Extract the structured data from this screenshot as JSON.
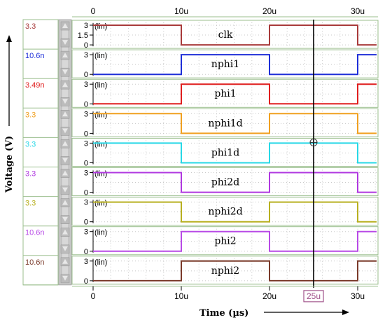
{
  "y_axis_label": "Voltage (V)",
  "x_axis_label": "Time (µs)",
  "cursor_label": "25u",
  "time_ticks": [
    "0",
    "10u",
    "20u",
    "30u"
  ],
  "colors": {
    "panel_border": "#9bbf8e",
    "grid": "#c8c8c8",
    "cursor": "#000000",
    "cursor_label": "#a0528a",
    "scroll_track": "#c9c9c9",
    "scroll_button": "#bcbcbc"
  },
  "scroll_controls": {
    "up_icon": "triangle-up-icon",
    "down_icon": "triangle-down-icon"
  },
  "chart_data": {
    "type": "line",
    "x_unit": "us",
    "xlim": [
      0,
      32
    ],
    "cursor_x": 25,
    "signals": [
      {
        "name": "clk",
        "value_readout": "3.3",
        "color": "#a83a3a",
        "y_ticks": [
          "3",
          "1.5",
          "0"
        ],
        "scale_label": "(lin)",
        "start_level": 1,
        "transitions": [
          10,
          20,
          30
        ],
        "ylim": [
          0,
          3.3
        ]
      },
      {
        "name": "nphi1",
        "value_readout": "10.6n",
        "color": "#1e2fd8",
        "y_ticks": [
          "3",
          "0"
        ],
        "scale_label": "(lin)",
        "start_level": 0,
        "transitions": [
          10,
          20,
          30
        ],
        "ylim": [
          0,
          3.3
        ]
      },
      {
        "name": "phi1",
        "value_readout": "3.49n",
        "color": "#e01e1e",
        "y_ticks": [
          "3",
          "0"
        ],
        "scale_label": "(lin)",
        "start_level": 0,
        "transitions": [
          10,
          20,
          30
        ],
        "ylim": [
          0,
          3.3
        ]
      },
      {
        "name": "nphi1d",
        "value_readout": "3.3",
        "color": "#f0a020",
        "y_ticks": [
          "3",
          "0"
        ],
        "scale_label": "(lin)",
        "start_level": 1,
        "transitions": [
          10,
          20,
          30
        ],
        "ylim": [
          0,
          3.3
        ]
      },
      {
        "name": "phi1d",
        "value_readout": "3.3",
        "color": "#27d8e6",
        "y_ticks": [
          "3",
          "0"
        ],
        "scale_label": "(lin)",
        "start_level": 1,
        "transitions": [
          10,
          20,
          30
        ],
        "ylim": [
          0,
          3.3
        ]
      },
      {
        "name": "phi2d",
        "value_readout": "3.3",
        "color": "#b038e0",
        "y_ticks": [
          "3",
          "0"
        ],
        "scale_label": "(lin)",
        "start_level": 1,
        "transitions": [
          10,
          20,
          30
        ],
        "ylim": [
          0,
          3.3
        ]
      },
      {
        "name": "nphi2d",
        "value_readout": "3.3",
        "color": "#b8b020",
        "y_ticks": [
          "3",
          "0"
        ],
        "scale_label": "(lin)",
        "start_level": 1,
        "transitions": [
          10,
          20,
          30
        ],
        "ylim": [
          0,
          3.3
        ]
      },
      {
        "name": "phi2",
        "value_readout": "10.6n",
        "color": "#b84ae6",
        "y_ticks": [
          "3",
          "0"
        ],
        "scale_label": "(lin)",
        "start_level": 0,
        "transitions": [
          10,
          20,
          30
        ],
        "ylim": [
          0,
          3.3
        ]
      },
      {
        "name": "nphi2",
        "value_readout": "10.6n",
        "color": "#7a3a2a",
        "y_ticks": [
          "3",
          "0"
        ],
        "scale_label": "(lin)",
        "start_level": 0,
        "transitions": [
          10,
          20,
          30
        ],
        "ylim": [
          0,
          3.3
        ]
      }
    ]
  }
}
